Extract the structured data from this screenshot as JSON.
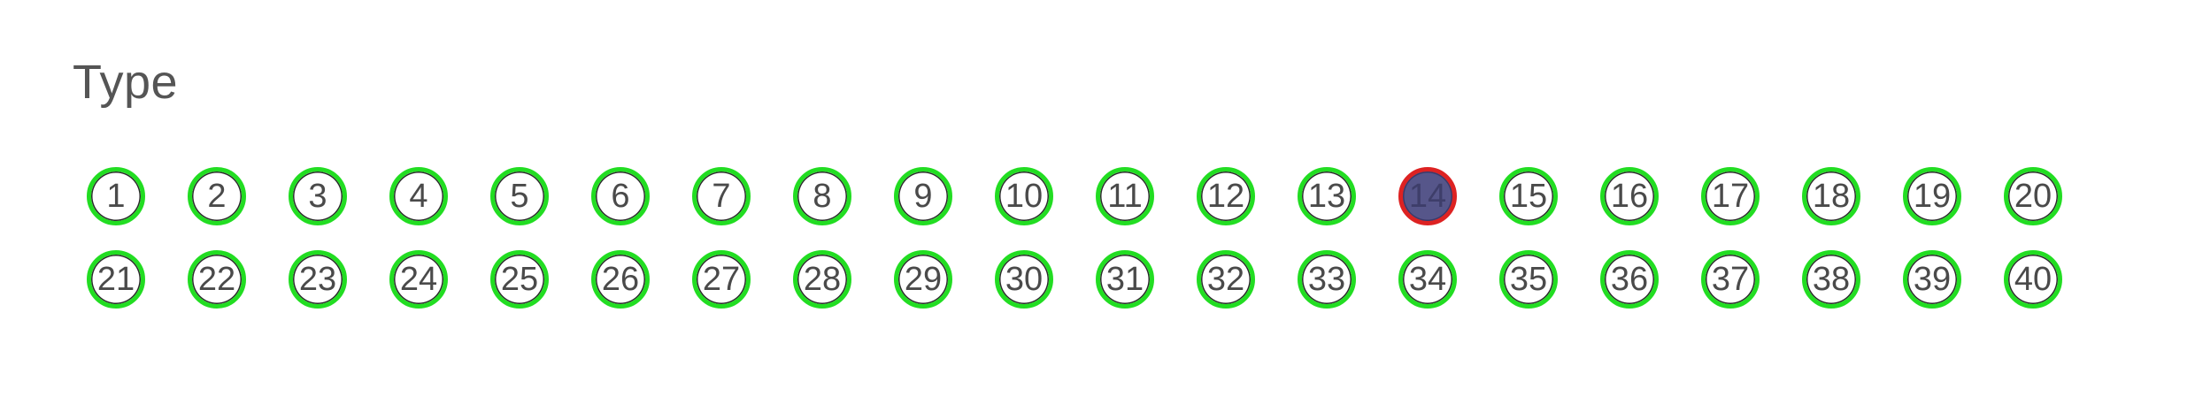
{
  "title": "Type",
  "items": [
    {
      "label": "1",
      "selected": false
    },
    {
      "label": "2",
      "selected": false
    },
    {
      "label": "3",
      "selected": false
    },
    {
      "label": "4",
      "selected": false
    },
    {
      "label": "5",
      "selected": false
    },
    {
      "label": "6",
      "selected": false
    },
    {
      "label": "7",
      "selected": false
    },
    {
      "label": "8",
      "selected": false
    },
    {
      "label": "9",
      "selected": false
    },
    {
      "label": "10",
      "selected": false
    },
    {
      "label": "11",
      "selected": false
    },
    {
      "label": "12",
      "selected": false
    },
    {
      "label": "13",
      "selected": false
    },
    {
      "label": "14",
      "selected": true
    },
    {
      "label": "15",
      "selected": false
    },
    {
      "label": "16",
      "selected": false
    },
    {
      "label": "17",
      "selected": false
    },
    {
      "label": "18",
      "selected": false
    },
    {
      "label": "19",
      "selected": false
    },
    {
      "label": "20",
      "selected": false
    },
    {
      "label": "21",
      "selected": false
    },
    {
      "label": "22",
      "selected": false
    },
    {
      "label": "23",
      "selected": false
    },
    {
      "label": "24",
      "selected": false
    },
    {
      "label": "25",
      "selected": false
    },
    {
      "label": "26",
      "selected": false
    },
    {
      "label": "27",
      "selected": false
    },
    {
      "label": "28",
      "selected": false
    },
    {
      "label": "29",
      "selected": false
    },
    {
      "label": "30",
      "selected": false
    },
    {
      "label": "31",
      "selected": false
    },
    {
      "label": "32",
      "selected": false
    },
    {
      "label": "33",
      "selected": false
    },
    {
      "label": "34",
      "selected": false
    },
    {
      "label": "35",
      "selected": false
    },
    {
      "label": "36",
      "selected": false
    },
    {
      "label": "37",
      "selected": false
    },
    {
      "label": "38",
      "selected": false
    },
    {
      "label": "39",
      "selected": false
    },
    {
      "label": "40",
      "selected": false
    }
  ],
  "colors": {
    "ring_default": "#22dd22",
    "ring_selected": "#dd2222",
    "fill_selected": "#56568a",
    "title_text": "#555555"
  }
}
